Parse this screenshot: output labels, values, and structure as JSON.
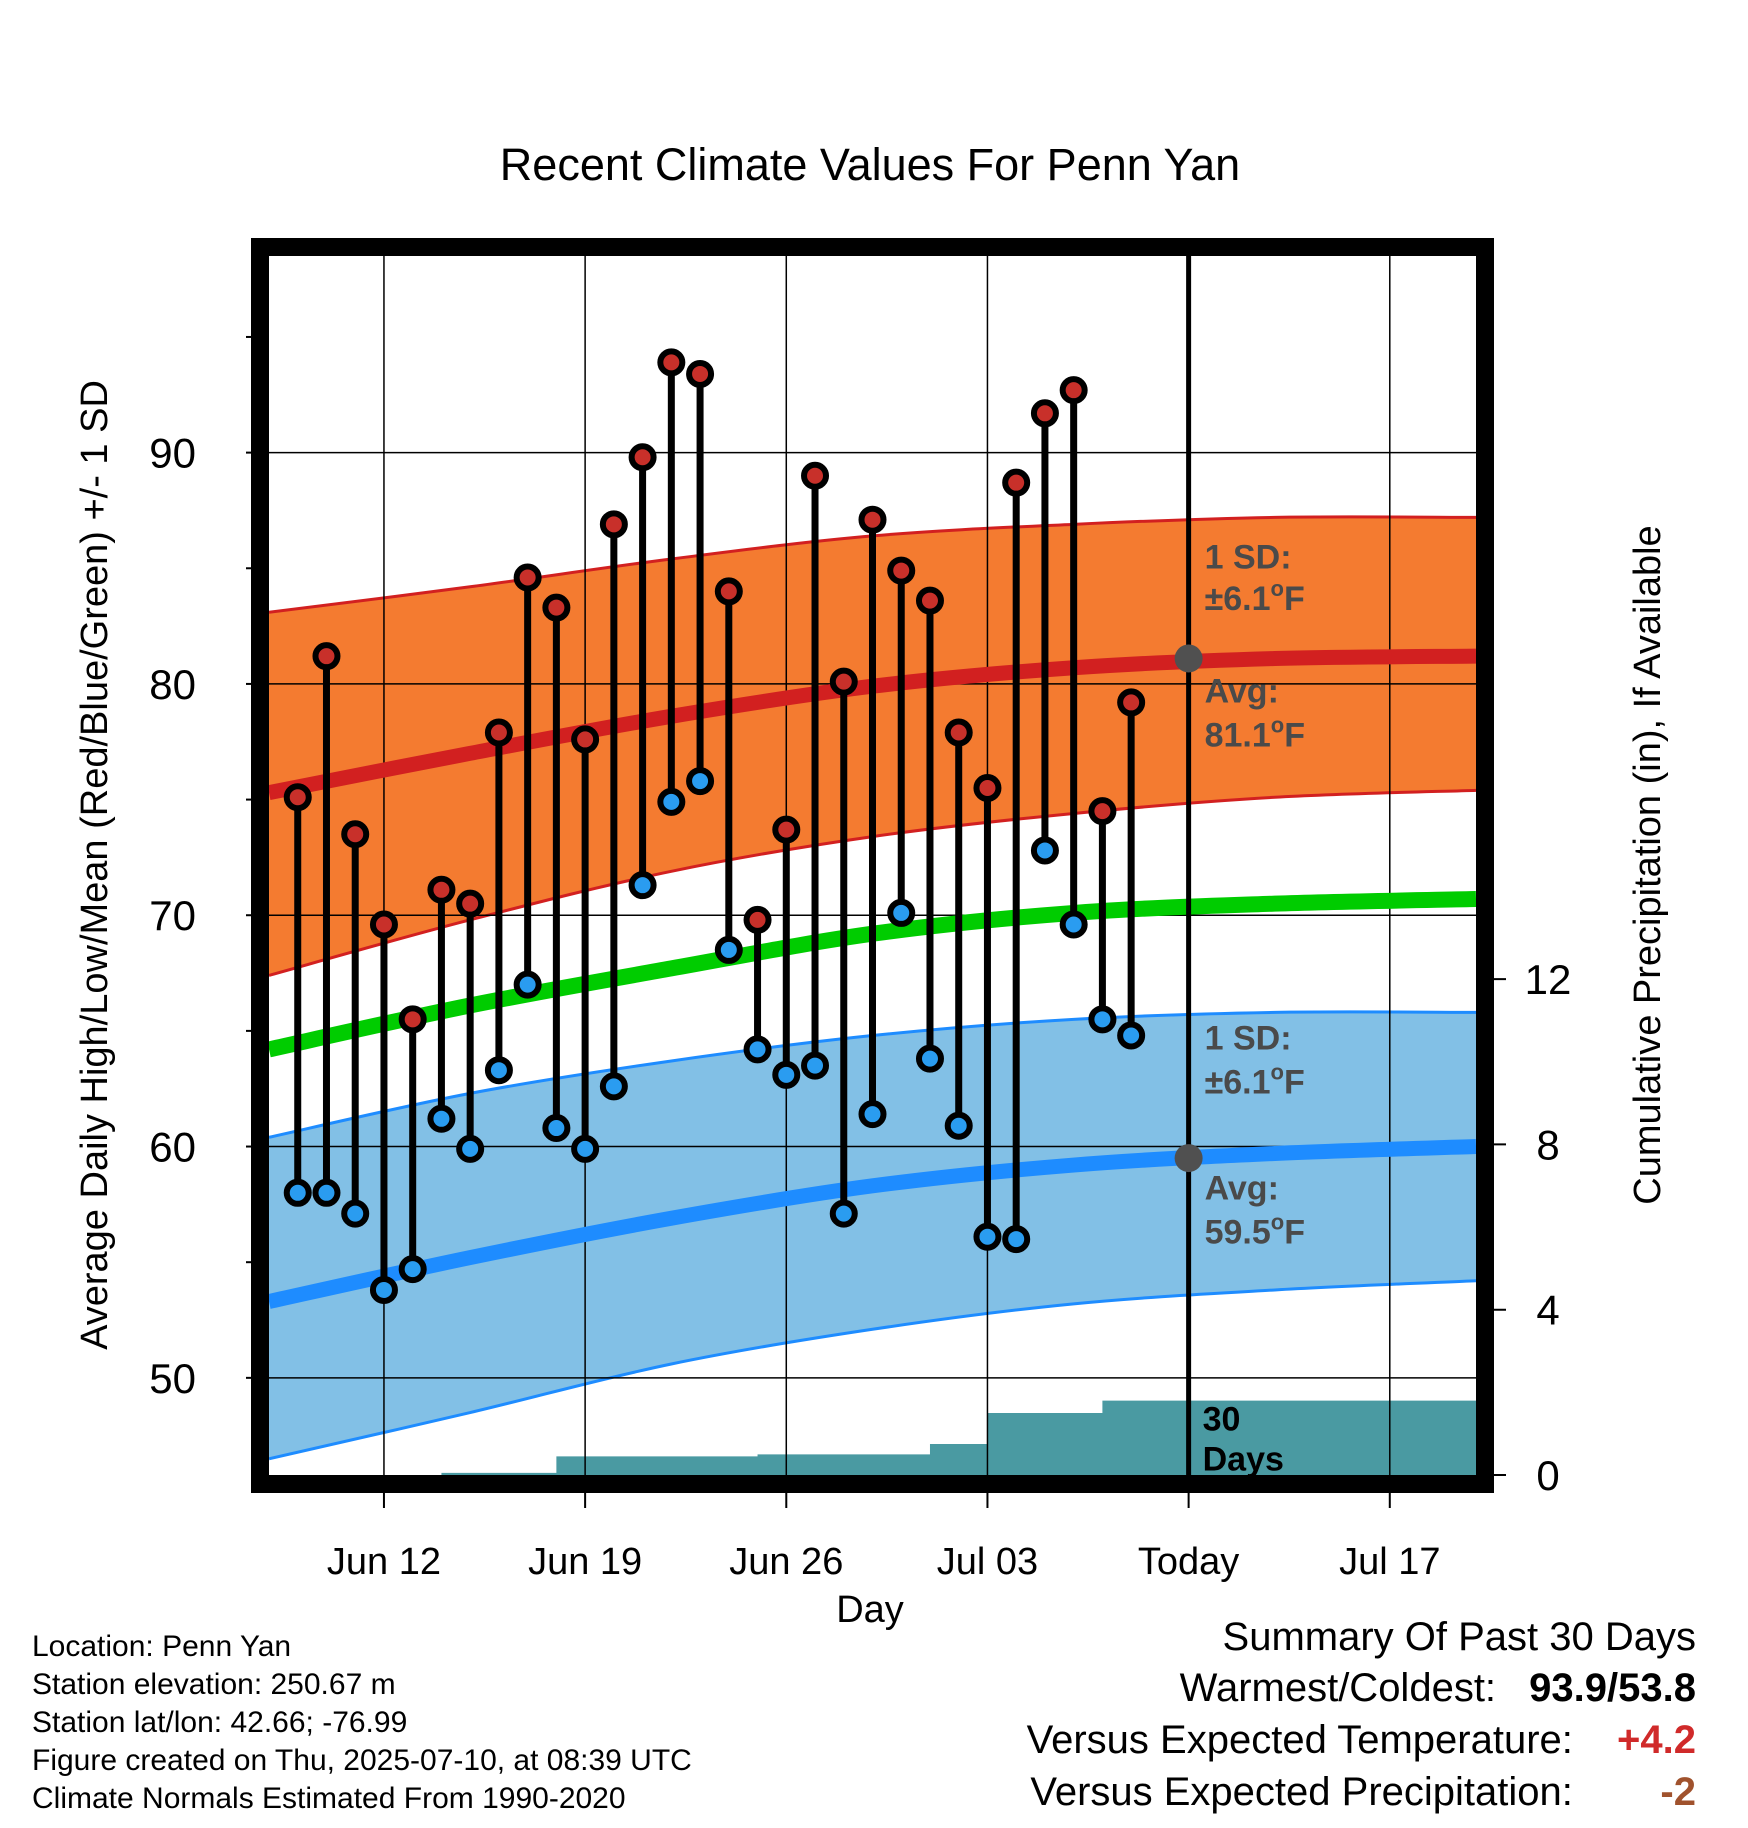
{
  "chart_data": {
    "type": "line",
    "title": "Recent Climate Values For Penn Yan",
    "xlabel": "Day",
    "ylabel": "Average Daily High/Low/Mean (Red/Blue/Green) +/- 1 SD",
    "y2label": "Cumulative Precipitation (in), If Available",
    "ylim": [
      45.8,
      98.5
    ],
    "y2lim": [
      0,
      29.5
    ],
    "yticks": [
      50,
      60,
      70,
      80,
      90
    ],
    "y2ticks": [
      0,
      4,
      8,
      12
    ],
    "x_range": [
      "2025-06-08",
      "2025-07-20"
    ],
    "xticks": [
      {
        "date": "2025-06-12",
        "label": "Jun 12"
      },
      {
        "date": "2025-06-19",
        "label": "Jun 19"
      },
      {
        "date": "2025-06-26",
        "label": "Jun 26"
      },
      {
        "date": "2025-07-03",
        "label": "Jul 03"
      },
      {
        "date": "2025-07-10",
        "label": "Today"
      },
      {
        "date": "2025-07-17",
        "label": "Jul 17"
      }
    ],
    "grid": true,
    "today": "2025-07-10",
    "daily": {
      "dates": [
        "2025-06-09",
        "2025-06-10",
        "2025-06-11",
        "2025-06-12",
        "2025-06-13",
        "2025-06-14",
        "2025-06-15",
        "2025-06-16",
        "2025-06-17",
        "2025-06-18",
        "2025-06-19",
        "2025-06-20",
        "2025-06-21",
        "2025-06-22",
        "2025-06-23",
        "2025-06-24",
        "2025-06-25",
        "2025-06-26",
        "2025-06-27",
        "2025-06-28",
        "2025-06-29",
        "2025-06-30",
        "2025-07-01",
        "2025-07-02",
        "2025-07-03",
        "2025-07-04",
        "2025-07-05",
        "2025-07-06",
        "2025-07-07",
        "2025-07-08",
        "2025-07-09"
      ],
      "high": [
        75.1,
        81.2,
        73.5,
        69.6,
        65.5,
        71.1,
        70.5,
        77.9,
        84.6,
        83.3,
        77.6,
        86.9,
        89.8,
        93.9,
        93.4,
        84.0,
        69.8,
        73.7,
        89.0,
        80.1,
        87.1,
        84.9,
        83.6,
        77.9,
        75.5,
        88.7,
        91.7,
        92.7,
        74.5,
        79.2,
        null
      ],
      "low": [
        58.0,
        58.0,
        57.1,
        53.8,
        54.7,
        61.2,
        59.9,
        63.3,
        67.0,
        60.8,
        59.9,
        62.6,
        71.3,
        74.9,
        75.8,
        68.5,
        64.2,
        63.1,
        63.5,
        57.1,
        61.4,
        70.1,
        63.8,
        60.9,
        56.1,
        56.0,
        72.8,
        69.6,
        65.5,
        64.8,
        null
      ]
    },
    "normals": {
      "dates": [
        "2025-06-08",
        "2025-06-15",
        "2025-06-22",
        "2025-06-29",
        "2025-07-06",
        "2025-07-13",
        "2025-07-20"
      ],
      "high_mean": [
        75.3,
        77.0,
        78.6,
        79.9,
        80.7,
        81.1,
        81.2
      ],
      "high_sd_upper": [
        83.1,
        84.2,
        85.4,
        86.4,
        86.9,
        87.2,
        87.2
      ],
      "high_sd_lower": [
        67.4,
        69.8,
        71.9,
        73.4,
        74.4,
        75.1,
        75.4
      ],
      "mean": [
        64.2,
        66.1,
        67.7,
        69.2,
        70.1,
        70.5,
        70.7
      ],
      "low_mean": [
        53.3,
        55.2,
        56.9,
        58.3,
        59.2,
        59.7,
        60.0
      ],
      "low_sd_upper": [
        60.4,
        62.3,
        63.7,
        64.8,
        65.5,
        65.8,
        65.8
      ],
      "low_sd_lower": [
        46.5,
        48.5,
        50.6,
        52.1,
        53.2,
        53.8,
        54.2
      ]
    },
    "precip": {
      "dates": [
        "2025-06-08",
        "2025-06-10",
        "2025-06-11",
        "2025-06-12",
        "2025-06-13",
        "2025-06-14",
        "2025-06-17",
        "2025-06-18",
        "2025-06-25",
        "2025-06-30",
        "2025-07-01",
        "2025-07-02",
        "2025-07-03",
        "2025-07-05",
        "2025-07-06",
        "2025-07-07",
        "2025-07-10",
        "2025-07-20"
      ],
      "cumulative": [
        0.0,
        0.0,
        0.0,
        0.0,
        0.0,
        0.05,
        0.05,
        0.45,
        0.5,
        0.5,
        0.75,
        0.75,
        1.5,
        1.5,
        1.5,
        1.8,
        1.8,
        1.8
      ],
      "label_value": "30",
      "label_unit": "Days"
    },
    "annotations": {
      "high_sd": "1 SD:",
      "high_sd_value": "±6.1",
      "high_avg": "Avg:",
      "high_avg_value": "81.1",
      "low_sd": "1 SD:",
      "low_sd_value": "±6.1",
      "low_avg": "Avg:",
      "low_avg_value": "59.5",
      "degree_sign": "o",
      "unit": "F"
    },
    "colors": {
      "high_band": "#f47b30",
      "high_line": "#d22020",
      "mean_line": "#00cc00",
      "low_band": "#82c0e6",
      "low_line": "#1e8cff",
      "precip": "#4a9aa2",
      "high_dot": "#c8302a",
      "low_dot": "#2a9cf0",
      "annotation_text": "#4a4a4a"
    }
  },
  "info": {
    "location": "Location: Penn Yan",
    "elevation": "Station elevation: 250.67 m",
    "latlon": "Station lat/lon: 42.66; -76.99",
    "created": "Figure created on Thu, 2025-07-10, at 08:39 UTC",
    "normals": "Climate Normals Estimated From 1990-2020"
  },
  "summary": {
    "title": "Summary Of Past 30 Days",
    "warm_cold_label": "Warmest/Coldest:",
    "warm_cold_value": "93.9/53.8",
    "temp_label": "Versus Expected Temperature:",
    "temp_value": "+4.2",
    "temp_color": "#d02a2a",
    "precip_label": "Versus Expected Precipitation:",
    "precip_value": "-2",
    "precip_color": "#a0522d"
  }
}
